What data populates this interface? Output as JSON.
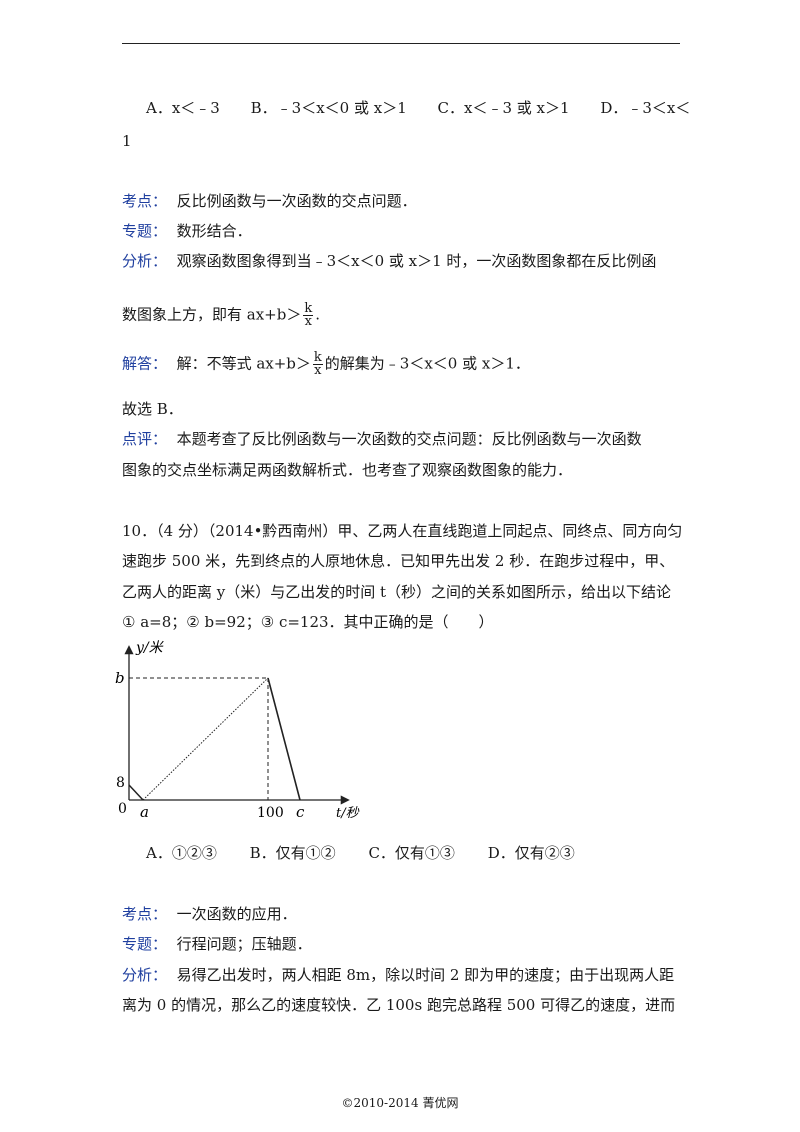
{
  "q9": {
    "options": {
      "a": "A．x＜﹣3",
      "b": "B．﹣3＜x＜0 或 x＞1",
      "c": "C．x＜﹣3 或 x＞1",
      "d": "D．﹣3＜x＜",
      "d_cont": "1"
    },
    "kaodian_label": "考点：",
    "kaodian": "反比例函数与一次函数的交点问题．",
    "zhuanti_label": "专题：",
    "zhuanti": "数形结合．",
    "fenxi_label": "分析：",
    "fenxi_1": "观察函数图象得到当﹣3＜x＜0 或 x＞1 时，一次函数图象都在反比例函",
    "fenxi_2a": "数图象上方，即有 ax+b＞",
    "fenxi_2b": ".",
    "frac_num": "k",
    "frac_den": "x",
    "jieda_label": "解答：",
    "jieda_a": "解：不等式 ax+b＞",
    "jieda_b": "的解集为﹣3＜x＜0 或 x＞1．",
    "guxuan": "故选 B．",
    "dianping_label": "点评：",
    "dianping_1": "本题考查了反比例函数与一次函数的交点问题：反比例函数与一次函数",
    "dianping_2": "图象的交点坐标满足两函数解析式．也考查了观察函数图象的能力．"
  },
  "q10": {
    "stem_1": "10．（4 分）（2014•黔西南州）甲、乙两人在直线跑道上同起点、同终点、同方向匀",
    "stem_2": "速跑步 500 米，先到终点的人原地休息．已知甲先出发 2 秒．在跑步过程中，甲、",
    "stem_3": "乙两人的距离 y（米）与乙出发的时间 t（秒）之间的关系如图所示，给出以下结论",
    "stem_4": "① a=8；② b=92；③ c=123．其中正确的是（　　）",
    "graph": {
      "y_axis_label": "y/米",
      "x_axis_label": "t/秒",
      "label_b": "b",
      "label_8": "8",
      "label_0": "0",
      "label_a": "a",
      "label_100": "100",
      "label_c": "c"
    },
    "options": {
      "a": "A．①②③",
      "b": "B．仅有①②",
      "c": "C．仅有①③",
      "d": "D．仅有②③"
    },
    "kaodian_label": "考点：",
    "kaodian": "一次函数的应用．",
    "zhuanti_label": "专题：",
    "zhuanti": "行程问题；压轴题．",
    "fenxi_label": "分析：",
    "fenxi_1": "易得乙出发时，两人相距 8m，除以时间 2 即为甲的速度；由于出现两人距",
    "fenxi_2": "离为 0 的情况，那么乙的速度较快．乙 100s 跑完总路程 500 可得乙的速度，进而"
  },
  "footer": "©2010-2014 菁优网"
}
